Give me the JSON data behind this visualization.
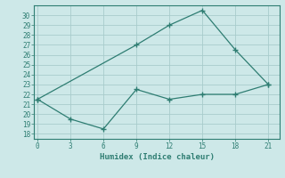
{
  "line1_x": [
    0,
    9,
    12,
    15,
    18,
    21
  ],
  "line1_y": [
    21.5,
    27,
    29,
    30.5,
    26.5,
    23
  ],
  "line2_x": [
    0,
    3,
    6,
    9,
    12,
    15,
    18,
    21
  ],
  "line2_y": [
    21.5,
    19.5,
    18.5,
    22.5,
    21.5,
    22,
    22,
    23
  ],
  "color": "#2e7d72",
  "xlabel": "Humidex (Indice chaleur)",
  "xticks": [
    0,
    3,
    6,
    9,
    12,
    15,
    18,
    21
  ],
  "yticks": [
    18,
    19,
    20,
    21,
    22,
    23,
    24,
    25,
    26,
    27,
    28,
    29,
    30
  ],
  "ylim": [
    17.5,
    31.0
  ],
  "xlim": [
    -0.3,
    22.0
  ],
  "bg_color": "#cde8e8",
  "grid_color": "#a8cccc"
}
